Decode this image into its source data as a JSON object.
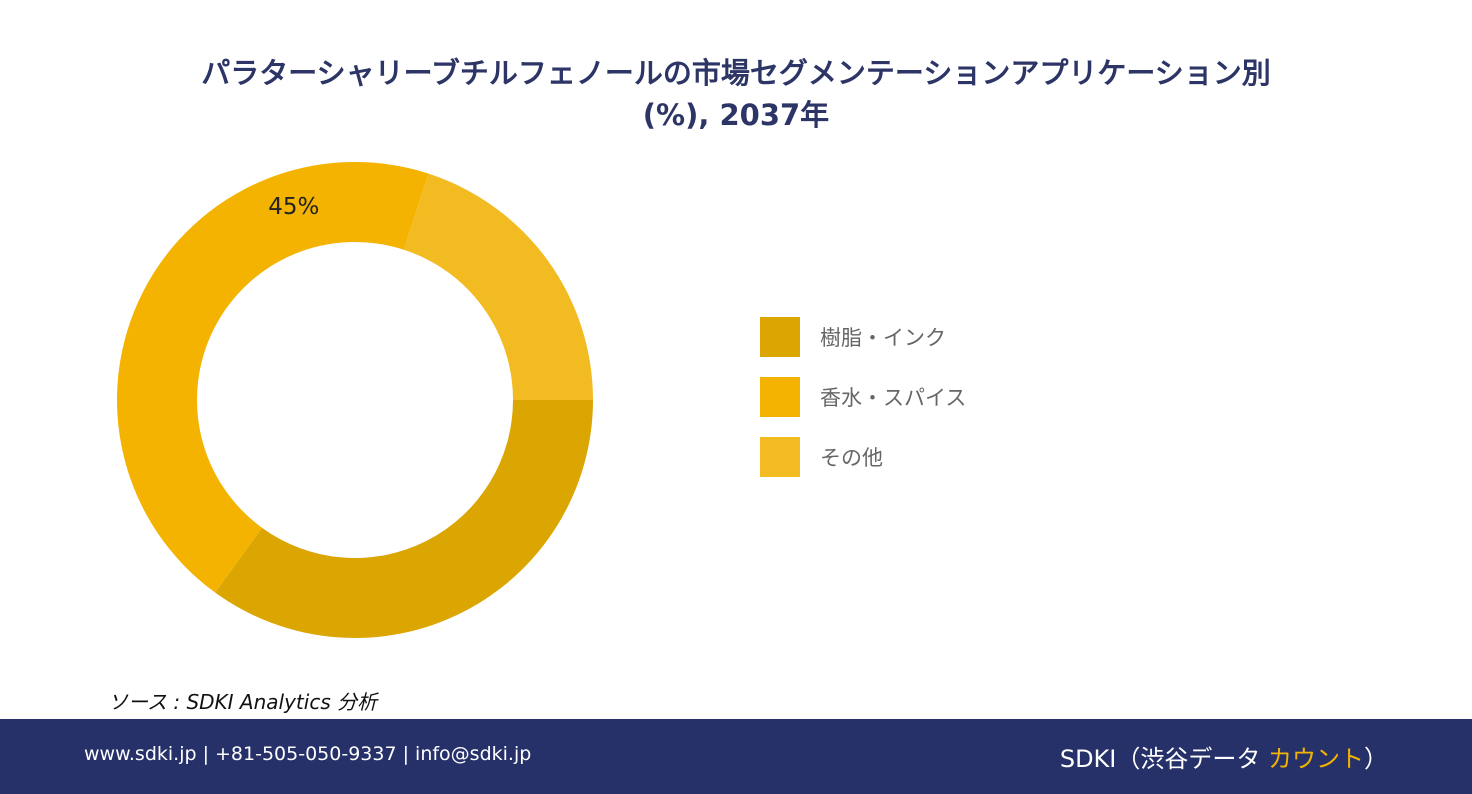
{
  "title": {
    "line1": "パラターシャリーブチルフェノールの市場セグメンテーションアプリケーション別",
    "line2": "(%), 2037年"
  },
  "chart_data": {
    "type": "pie",
    "donut": true,
    "categories": [
      "樹脂・インク",
      "香水・スパイス",
      "その他"
    ],
    "values": [
      35,
      45,
      20
    ],
    "data_labels": [
      "",
      "45%",
      ""
    ],
    "colors": [
      "#dba502",
      "#f3b300",
      "#f3bb22"
    ],
    "legend_position": "right"
  },
  "source": "ソース : SDKI Analytics  分析",
  "footer": {
    "contact": "www.sdki.jp | +81-505-050-9337 | info@sdki.jp",
    "brand_prefix": "SDKI（渋谷データ ",
    "brand_accent": "カウント",
    "brand_suffix": "）"
  }
}
